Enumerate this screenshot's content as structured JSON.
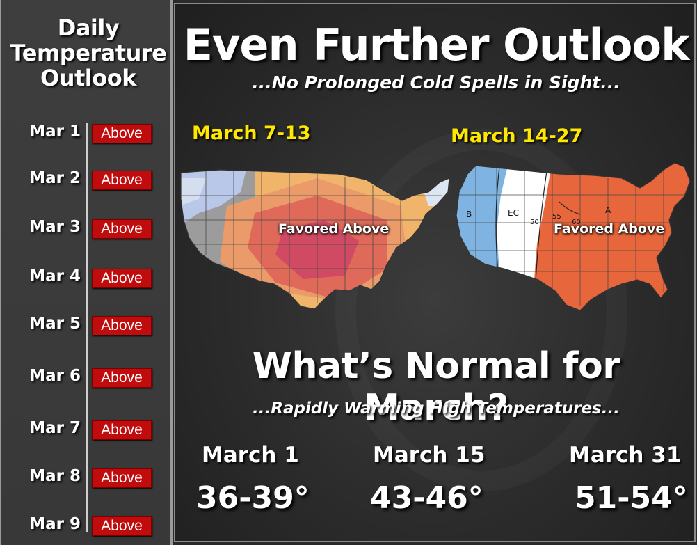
{
  "sidebar": {
    "title_lines": [
      "Daily",
      "Temperature",
      "Outlook"
    ],
    "days": [
      {
        "date": "Mar 1",
        "outlook": "Above"
      },
      {
        "date": "Mar 2",
        "outlook": "Above"
      },
      {
        "date": "Mar 3",
        "outlook": "Above"
      },
      {
        "date": "Mar 4",
        "outlook": "Above"
      },
      {
        "date": "Mar 5",
        "outlook": "Above"
      },
      {
        "date": "Mar 6",
        "outlook": "Above"
      },
      {
        "date": "Mar 7",
        "outlook": "Above"
      },
      {
        "date": "Mar 8",
        "outlook": "Above"
      },
      {
        "date": "Mar 9",
        "outlook": "Above"
      }
    ],
    "badge_color": "#c00c0c"
  },
  "outlook": {
    "title": "Even Further Outlook",
    "subtitle": "...No Prolonged Cold Spells in Sight...",
    "maps": [
      {
        "period": "March 7-13",
        "caption": "Favored Above"
      },
      {
        "period": "March 14-27",
        "caption": "Favored Above",
        "contour_labels": [
          "B",
          "EC",
          "50",
          "55",
          "60",
          "A"
        ]
      }
    ],
    "label_color": "#ffe800"
  },
  "normals": {
    "title": "What’s Normal for March?",
    "subtitle": "...Rapidly Warming  High Temperatures...",
    "items": [
      {
        "date": "March 1",
        "range": "36-39°"
      },
      {
        "date": "March 15",
        "range": "43-46°"
      },
      {
        "date": "March 31",
        "range": "51-54°"
      }
    ]
  }
}
